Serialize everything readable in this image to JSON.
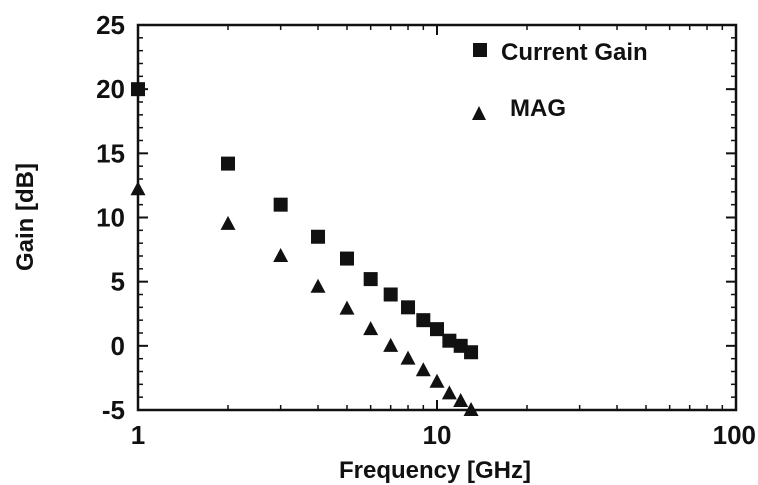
{
  "chart_data": {
    "type": "scatter",
    "xlabel": "Frequency [GHz]",
    "ylabel": "Gain [dB]",
    "xscale": "log",
    "xlim": [
      1,
      100
    ],
    "ylim": [
      -5,
      25
    ],
    "x_ticks": [
      {
        "value": 1,
        "label": "1"
      },
      {
        "value": 10,
        "label": "10"
      },
      {
        "value": 100,
        "label": "100"
      }
    ],
    "y_ticks": [
      {
        "value": -5,
        "label": "-5"
      },
      {
        "value": 0,
        "label": "0"
      },
      {
        "value": 5,
        "label": "5"
      },
      {
        "value": 10,
        "label": "10"
      },
      {
        "value": 15,
        "label": "15"
      },
      {
        "value": 20,
        "label": "20"
      },
      {
        "value": 25,
        "label": "25"
      }
    ],
    "grid": false,
    "legend_position": "top-right",
    "series": [
      {
        "name": "Current Gain",
        "marker": "square",
        "color": "#111111",
        "points": [
          {
            "x": 1,
            "y": 20
          },
          {
            "x": 2,
            "y": 14.2
          },
          {
            "x": 3,
            "y": 11
          },
          {
            "x": 4,
            "y": 8.5
          },
          {
            "x": 5,
            "y": 6.8
          },
          {
            "x": 6,
            "y": 5.2
          },
          {
            "x": 7,
            "y": 4
          },
          {
            "x": 8,
            "y": 3
          },
          {
            "x": 9,
            "y": 2
          },
          {
            "x": 10,
            "y": 1.3
          },
          {
            "x": 11,
            "y": 0.4
          },
          {
            "x": 12,
            "y": 0
          },
          {
            "x": 13,
            "y": -0.5
          }
        ]
      },
      {
        "name": "MAG",
        "marker": "triangle",
        "color": "#111111",
        "points": [
          {
            "x": 1,
            "y": 12.2
          },
          {
            "x": 2,
            "y": 9.5
          },
          {
            "x": 3,
            "y": 7
          },
          {
            "x": 4,
            "y": 4.6
          },
          {
            "x": 5,
            "y": 2.9
          },
          {
            "x": 6,
            "y": 1.3
          },
          {
            "x": 7,
            "y": 0
          },
          {
            "x": 8,
            "y": -1
          },
          {
            "x": 9,
            "y": -1.9
          },
          {
            "x": 10,
            "y": -2.8
          },
          {
            "x": 11,
            "y": -3.7
          },
          {
            "x": 12,
            "y": -4.3
          },
          {
            "x": 13,
            "y": -5
          }
        ]
      }
    ]
  }
}
